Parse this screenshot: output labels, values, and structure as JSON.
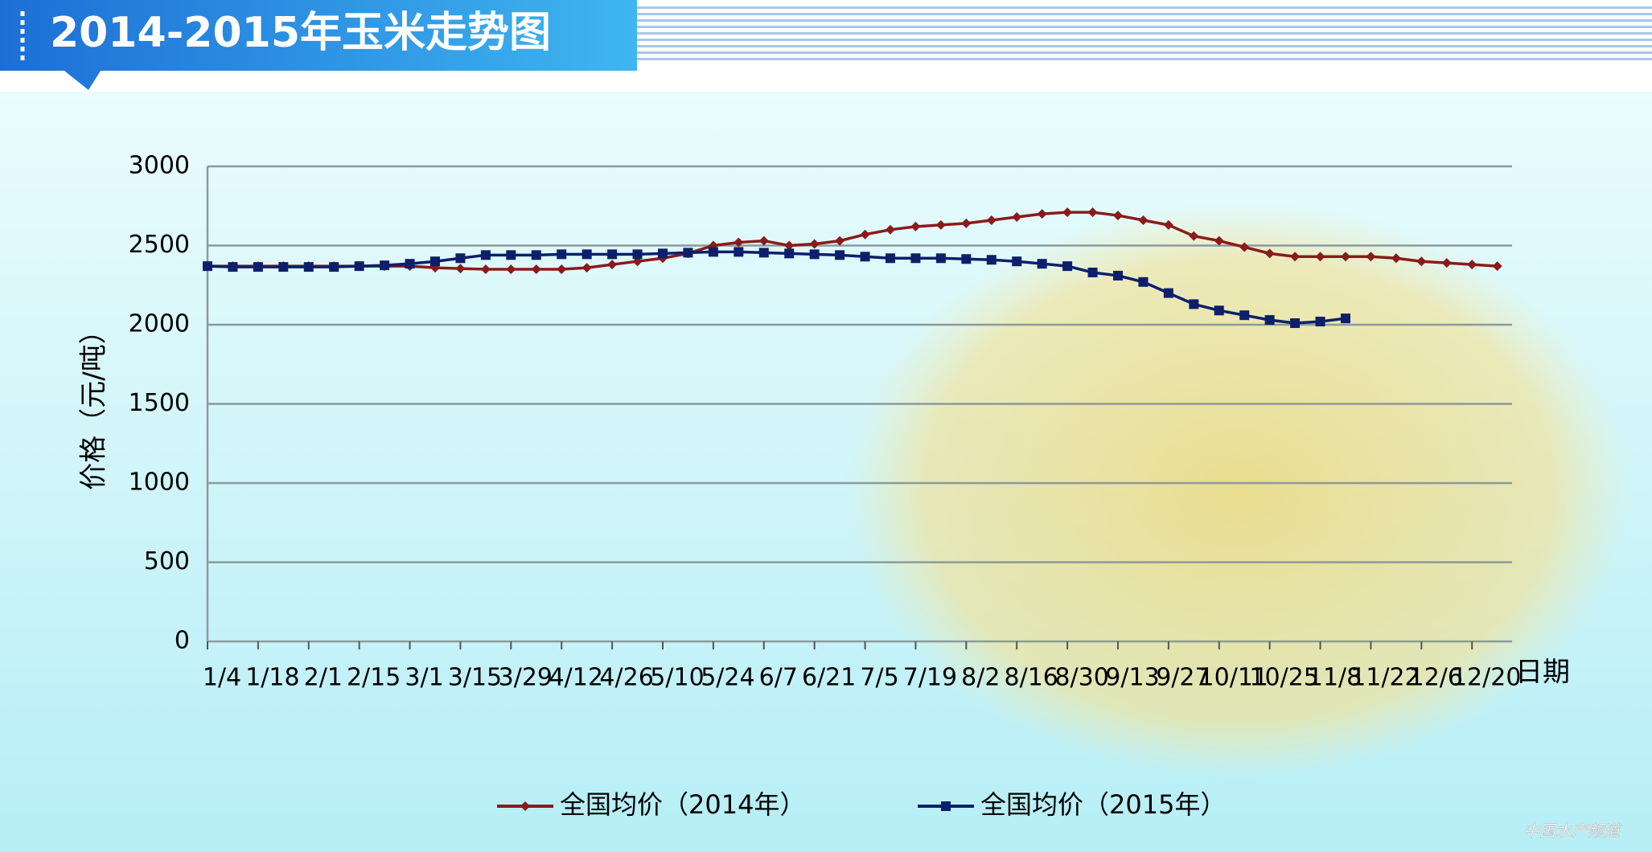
{
  "chart_data": {
    "type": "line",
    "title": "2014-2015年玉米走势图",
    "y_label": "价格（元/吨）",
    "x_label": "日期",
    "watermark": "中国水产频道",
    "categories": [
      "1/4",
      null,
      "1/18",
      null,
      "2/1",
      null,
      "2/15",
      null,
      "3/1",
      null,
      "3/15",
      null,
      "3/29",
      null,
      "4/12",
      null,
      "4/26",
      null,
      "5/10",
      null,
      "5/24",
      null,
      "6/7",
      null,
      "6/21",
      null,
      "7/5",
      null,
      "7/19",
      null,
      "8/2",
      null,
      "8/16",
      null,
      "8/30",
      null,
      "9/13",
      null,
      "9/27",
      null,
      "10/11",
      null,
      "10/25",
      null,
      "11/8",
      null,
      "11/22",
      null,
      "12/6",
      null,
      "12/20",
      null
    ],
    "series": [
      {
        "name": "全国均价（2014年）",
        "color": "#8b1a1a",
        "marker": "diamond",
        "values": [
          2370,
          2370,
          2370,
          2370,
          2370,
          2370,
          2370,
          2370,
          2370,
          2360,
          2355,
          2350,
          2350,
          2350,
          2350,
          2360,
          2380,
          2400,
          2420,
          2450,
          2500,
          2520,
          2530,
          2500,
          2510,
          2530,
          2570,
          2600,
          2620,
          2630,
          2640,
          2660,
          2680,
          2700,
          2710,
          2710,
          2690,
          2660,
          2630,
          2560,
          2530,
          2490,
          2450,
          2430,
          2430,
          2430,
          2430,
          2420,
          2400,
          2390,
          2380,
          2370
        ]
      },
      {
        "name": "全国均价（2015年）",
        "color": "#0d1f6b",
        "marker": "square",
        "values": [
          2370,
          2365,
          2365,
          2365,
          2365,
          2365,
          2370,
          2375,
          2385,
          2400,
          2420,
          2440,
          2440,
          2440,
          2445,
          2445,
          2445,
          2445,
          2450,
          2455,
          2460,
          2460,
          2455,
          2450,
          2445,
          2440,
          2430,
          2420,
          2420,
          2420,
          2415,
          2410,
          2400,
          2385,
          2370,
          2330,
          2310,
          2270,
          2200,
          2130,
          2090,
          2060,
          2030,
          2010,
          2020,
          2040,
          null,
          null,
          null,
          null,
          null,
          null
        ]
      }
    ],
    "ylim": [
      0,
      3000
    ],
    "yticks": [
      0,
      500,
      1000,
      1500,
      2000,
      2500,
      3000
    ],
    "grid": true,
    "legend": "bottom"
  }
}
